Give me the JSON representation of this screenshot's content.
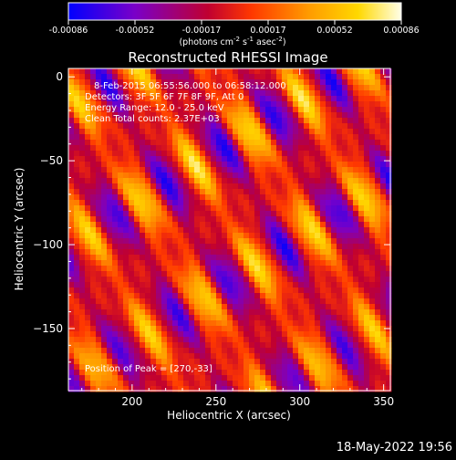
{
  "chart_data": {
    "type": "heatmap",
    "title": "Reconstructed RHESSI Image",
    "xlabel": "Heliocentric X (arcsec)",
    "ylabel": "Heliocentric Y (arcsec)",
    "xlim": [
      162,
      354
    ],
    "ylim": [
      -187,
      5
    ],
    "x_ticks": [
      200,
      250,
      300,
      350
    ],
    "y_ticks": [
      0,
      -50,
      -100,
      -150
    ],
    "colorbar": {
      "label_prefix": "(photons cm",
      "label_sup1": "-2",
      "label_mid1": " s",
      "label_sup2": "-1",
      "label_mid2": " asec",
      "label_sup3": "-2",
      "label_suffix": ")",
      "range": [
        -0.00086,
        0.00086
      ],
      "ticks": [
        "-0.00086",
        "-0.00052",
        "-0.00017",
        "0.00017",
        "0.00052",
        "0.00086"
      ],
      "colormap": [
        "#0000ff",
        "#7a00c8",
        "#c00030",
        "#ff3800",
        "#ff9a00",
        "#ffd800",
        "#ffffe8"
      ]
    },
    "annotations": {
      "time": "8-Feb-2015 06:55:56.000 to 06:58:12.000",
      "detectors": "Detectors: 3F 5F 6F 7F 8F 9F, Att 0",
      "energy": "Energy Range: 12.0 - 25.0 keV",
      "clean": "Clean    Total counts: 2.37E+03",
      "peak": "Position of Peak = [270,-33]"
    },
    "peak_position": [
      270,
      -33
    ],
    "pattern": {
      "description": "diagonal stripe modulation pattern",
      "stripe_direction_deg": 58,
      "stripe_period_arcsec": 38
    }
  },
  "footer": {
    "timestamp": "18-May-2022 19:56"
  }
}
